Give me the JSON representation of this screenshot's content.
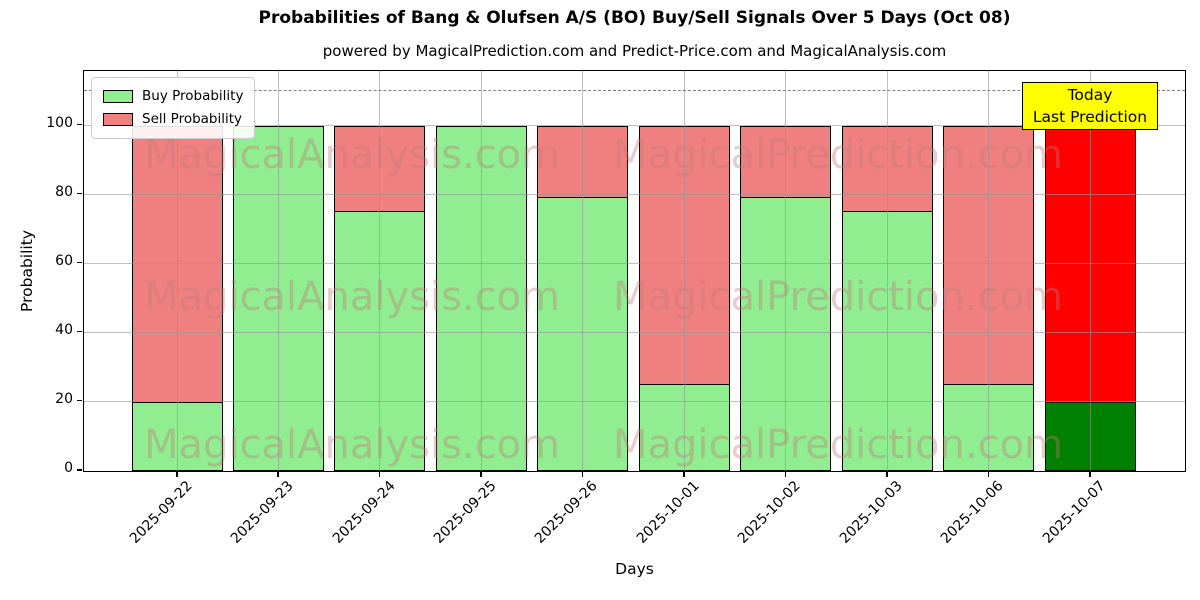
{
  "header": {
    "title": "Probabilities of Bang & Olufsen A/S (BO) Buy/Sell Signals Over 5 Days (Oct 08)",
    "subtitle": "powered by MagicalPrediction.com and Predict-Price.com and MagicalAnalysis.com"
  },
  "legend": {
    "buy_label": "Buy Probability",
    "sell_label": "Sell Probability"
  },
  "annotation": {
    "line1": "Today",
    "line2": "Last Prediction",
    "bg_color": "#ffff00"
  },
  "watermarks": [
    "MagicalAnalysis.com",
    "MagicalPrediction.com"
  ],
  "chart_data": {
    "type": "bar",
    "stacked": true,
    "title": "Probabilities of Bang & Olufsen A/S (BO) Buy/Sell Signals Over 5 Days (Oct 08)",
    "subtitle": "powered by MagicalPrediction.com and Predict-Price.com and MagicalAnalysis.com",
    "xlabel": "Days",
    "ylabel": "Probability",
    "categories": [
      "2025-09-22",
      "2025-09-23",
      "2025-09-24",
      "2025-09-25",
      "2025-09-26",
      "2025-10-01",
      "2025-10-02",
      "2025-10-03",
      "2025-10-06",
      "2025-10-07"
    ],
    "series": [
      {
        "name": "Buy Probability",
        "values": [
          20,
          100,
          75.5,
          100,
          79.5,
          25.3,
          79.5,
          75.5,
          25.3,
          20
        ]
      },
      {
        "name": "Sell Probability",
        "values": [
          80,
          0,
          24.5,
          0,
          20.5,
          74.7,
          20.5,
          24.5,
          74.7,
          80
        ]
      }
    ],
    "yticks": [
      0,
      20,
      40,
      60,
      80,
      100
    ],
    "ylim": [
      0,
      115.5
    ],
    "dashed_line_y": 110,
    "grid": true,
    "legend_position": "upper-left",
    "colors": {
      "buy": "#90EE90",
      "sell": "#F08080",
      "today_buy": "#008000",
      "today_sell": "#FF0000",
      "edge": "#000000",
      "dashed_line": "#7f7f7f"
    },
    "today_bar_index": 9
  }
}
